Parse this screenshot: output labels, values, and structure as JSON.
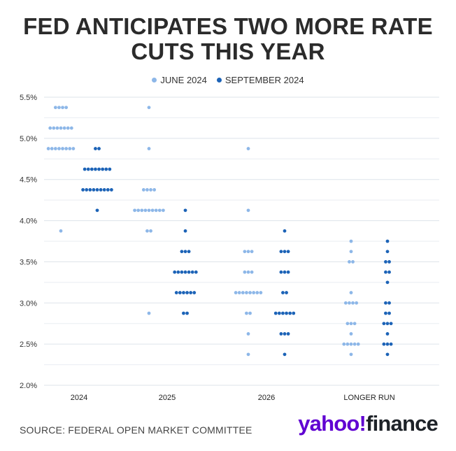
{
  "title_line1": "FED ANTICIPATES TWO MORE RATE",
  "title_line2": "CUTS THIS YEAR",
  "source": "SOURCE: FEDERAL OPEN MARKET COMMITTEE",
  "brand": {
    "part1": "yahoo!",
    "part2": "finance"
  },
  "chart_data": {
    "type": "scatter",
    "title": "FED ANTICIPATES TWO MORE RATE CUTS THIS YEAR",
    "categories": [
      "2024",
      "2025",
      "2026",
      "LONGER RUN"
    ],
    "y_ticks": [
      "5.5%",
      "5.0%",
      "4.5%",
      "4.0%",
      "3.5%",
      "3.0%",
      "2.5%",
      "2.0%"
    ],
    "ylim": [
      2.0,
      5.5
    ],
    "grid": true,
    "legend_position": "top-center",
    "series": [
      {
        "name": "JUNE 2024",
        "color": "#8db7e8",
        "dots": {
          "2024": [
            {
              "rate": 5.375,
              "count": 4
            },
            {
              "rate": 5.125,
              "count": 7
            },
            {
              "rate": 4.875,
              "count": 8
            },
            {
              "rate": 3.875,
              "count": 1
            }
          ],
          "2025": [
            {
              "rate": 5.375,
              "count": 1
            },
            {
              "rate": 4.875,
              "count": 1
            },
            {
              "rate": 4.375,
              "count": 4
            },
            {
              "rate": 4.125,
              "count": 9
            },
            {
              "rate": 3.875,
              "count": 2
            },
            {
              "rate": 2.875,
              "count": 1
            }
          ],
          "2026": [
            {
              "rate": 4.875,
              "count": 1
            },
            {
              "rate": 4.125,
              "count": 1
            },
            {
              "rate": 3.625,
              "count": 3
            },
            {
              "rate": 3.375,
              "count": 3
            },
            {
              "rate": 3.125,
              "count": 8
            },
            {
              "rate": 2.875,
              "count": 2
            },
            {
              "rate": 2.625,
              "count": 1
            },
            {
              "rate": 2.375,
              "count": 1
            }
          ],
          "LONGER RUN": [
            {
              "rate": 3.75,
              "count": 1
            },
            {
              "rate": 3.625,
              "count": 1
            },
            {
              "rate": 3.5,
              "count": 2
            },
            {
              "rate": 3.125,
              "count": 1
            },
            {
              "rate": 3.0,
              "count": 4
            },
            {
              "rate": 2.75,
              "count": 3
            },
            {
              "rate": 2.625,
              "count": 1
            },
            {
              "rate": 2.5,
              "count": 5
            },
            {
              "rate": 2.375,
              "count": 1
            }
          ]
        }
      },
      {
        "name": "SEPTEMBER 2024",
        "color": "#1c63b7",
        "dots": {
          "2024": [
            {
              "rate": 4.875,
              "count": 2
            },
            {
              "rate": 4.625,
              "count": 8
            },
            {
              "rate": 4.375,
              "count": 9
            },
            {
              "rate": 4.125,
              "count": 1
            }
          ],
          "2025": [
            {
              "rate": 4.125,
              "count": 1
            },
            {
              "rate": 3.875,
              "count": 1
            },
            {
              "rate": 3.625,
              "count": 3
            },
            {
              "rate": 3.375,
              "count": 7
            },
            {
              "rate": 3.125,
              "count": 6
            },
            {
              "rate": 2.875,
              "count": 2
            }
          ],
          "2026": [
            {
              "rate": 3.875,
              "count": 1
            },
            {
              "rate": 3.625,
              "count": 3
            },
            {
              "rate": 3.375,
              "count": 3
            },
            {
              "rate": 3.125,
              "count": 2
            },
            {
              "rate": 2.875,
              "count": 6
            },
            {
              "rate": 2.625,
              "count": 3
            },
            {
              "rate": 2.375,
              "count": 1
            }
          ],
          "LONGER RUN": [
            {
              "rate": 3.75,
              "count": 1
            },
            {
              "rate": 3.625,
              "count": 1
            },
            {
              "rate": 3.5,
              "count": 2
            },
            {
              "rate": 3.375,
              "count": 2
            },
            {
              "rate": 3.25,
              "count": 1
            },
            {
              "rate": 3.0,
              "count": 2
            },
            {
              "rate": 2.875,
              "count": 2
            },
            {
              "rate": 2.75,
              "count": 3
            },
            {
              "rate": 2.625,
              "count": 1
            },
            {
              "rate": 2.5,
              "count": 3
            },
            {
              "rate": 2.375,
              "count": 1
            }
          ]
        }
      }
    ]
  }
}
